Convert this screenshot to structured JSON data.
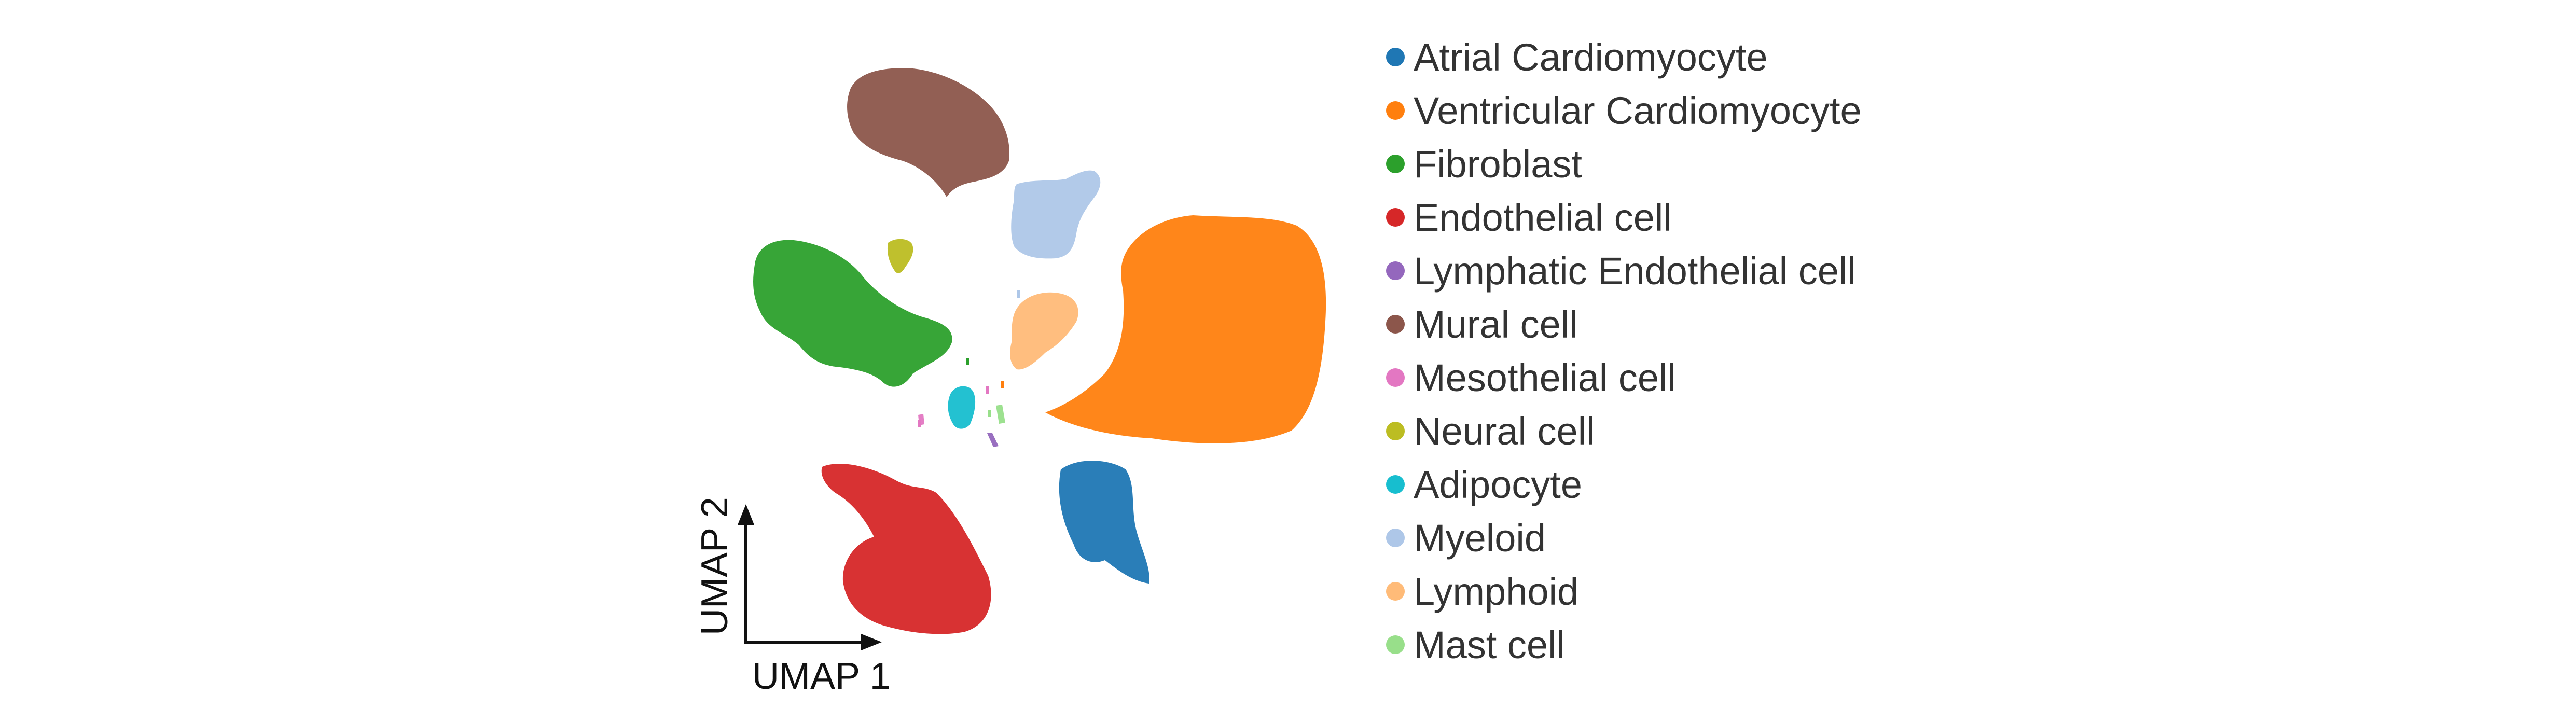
{
  "chart_data": {
    "type": "scatter",
    "xlabel": "UMAP 1",
    "ylabel": "UMAP 2",
    "legend_position": "right",
    "grid": false,
    "clusters": [
      {
        "name": "Atrial Cardiomyocyte",
        "color": "#1f77b4"
      },
      {
        "name": "Ventricular Cardiomyocyte",
        "color": "#ff7f0e"
      },
      {
        "name": "Fibroblast",
        "color": "#2ca02c"
      },
      {
        "name": "Endothelial cell",
        "color": "#d62728"
      },
      {
        "name": "Lymphatic Endothelial cell",
        "color": "#9467bd"
      },
      {
        "name": "Mural cell",
        "color": "#8c564b"
      },
      {
        "name": "Mesothelial cell",
        "color": "#e377c2"
      },
      {
        "name": "Neural cell",
        "color": "#bcbd22"
      },
      {
        "name": "Adipocyte",
        "color": "#17becf"
      },
      {
        "name": "Myeloid",
        "color": "#aec7e8"
      },
      {
        "name": "Lymphoid",
        "color": "#ffbb78"
      },
      {
        "name": "Mast cell",
        "color": "#98df8a"
      }
    ]
  }
}
